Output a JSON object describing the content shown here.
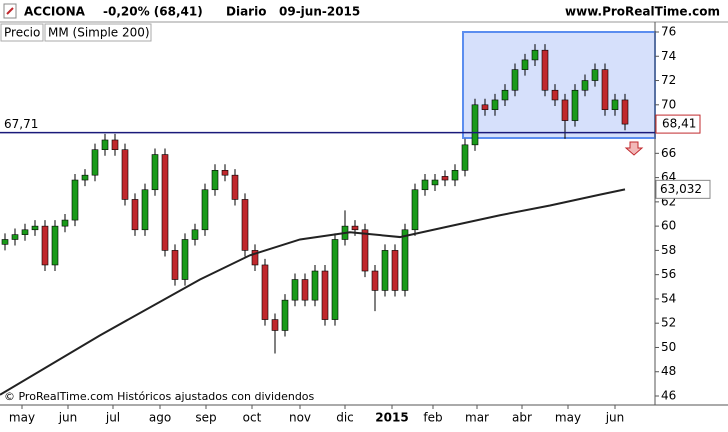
{
  "chart_data": {
    "type": "candlestick",
    "title": "ACCIONA",
    "change": "-0,20% (68,41)",
    "period": "Diario",
    "date": "09-jun-2015",
    "site": "www.ProRealTime.com",
    "legend": [
      "Precio",
      "MM (Simple 200)"
    ],
    "footer": "© ProRealTime.com Históricos ajustados con dividendos",
    "open": [
      58.5,
      58.9,
      59.3,
      59.7,
      60,
      56.8,
      60,
      60.5,
      63.8,
      64.2,
      66.3,
      67.1,
      66.3,
      62.2,
      59.7,
      63,
      65.9,
      58,
      55.6,
      58.9,
      59.7,
      63,
      64.6,
      64.2,
      62.2,
      58,
      56.8,
      52.3,
      51.4,
      53.9,
      55.6,
      53.9,
      56.3,
      52.3,
      58.9,
      60,
      59.7,
      56.3,
      54.7,
      58,
      54.7,
      59.7,
      63,
      63.4,
      64.1,
      63.8,
      64.6,
      66.7,
      70,
      69.6,
      70.4,
      71.2,
      72.9,
      73.7,
      74.5,
      71.2,
      70.4,
      68.7,
      71.2,
      72,
      72.9,
      69.6,
      70.4
    ],
    "high": [
      59.4,
      59.8,
      60.2,
      60.5,
      60.5,
      60.5,
      61,
      64.3,
      64.7,
      66.8,
      67.6,
      67.6,
      66.8,
      62.7,
      63.5,
      66.4,
      66.4,
      58.5,
      59.4,
      60.2,
      63.5,
      65.1,
      65.1,
      64.7,
      62.7,
      58.5,
      57.3,
      52.8,
      54.4,
      56.1,
      56.1,
      56.8,
      56.8,
      59.4,
      61.3,
      60.5,
      60.2,
      56.8,
      58.5,
      58.5,
      60.2,
      63.5,
      64.3,
      64.3,
      64.6,
      65.1,
      67.2,
      70.5,
      70.5,
      70.9,
      71.7,
      73.4,
      74.2,
      75,
      75,
      71.7,
      70.9,
      71.7,
      72.5,
      73.4,
      73.4,
      70.9,
      70.9
    ],
    "low": [
      58,
      58.4,
      58.8,
      59.2,
      56.3,
      56.3,
      59.5,
      60,
      63.3,
      63.7,
      65.8,
      65.8,
      61.7,
      59.2,
      59.2,
      62.5,
      57.5,
      55.1,
      55.1,
      58.4,
      59.2,
      62.5,
      63.7,
      61.7,
      57.5,
      56.3,
      51.8,
      49.5,
      50.9,
      53.4,
      53.4,
      53.4,
      51.8,
      51.8,
      58.4,
      59.2,
      55.8,
      53,
      54.2,
      54.2,
      54.2,
      59.2,
      62.5,
      62.9,
      63.3,
      63.3,
      64.1,
      66.2,
      69.1,
      69.1,
      69.9,
      70.7,
      72.4,
      73.2,
      70.7,
      69.9,
      67.2,
      68.2,
      70.7,
      71.5,
      69.1,
      69.1,
      67.9
    ],
    "close": [
      58.9,
      59.3,
      59.7,
      60,
      56.8,
      60,
      60.5,
      63.8,
      64.2,
      66.3,
      67.1,
      66.3,
      62.2,
      59.7,
      63,
      65.9,
      58,
      55.6,
      58.9,
      59.7,
      63,
      64.6,
      64.2,
      62.2,
      58,
      56.8,
      52.3,
      51.4,
      53.9,
      55.6,
      53.9,
      56.3,
      52.3,
      58.9,
      60,
      59.7,
      56.3,
      54.7,
      58,
      54.7,
      59.7,
      63,
      63.8,
      63.8,
      63.8,
      64.6,
      66.7,
      70,
      69.6,
      70.4,
      71.2,
      72.9,
      73.7,
      74.5,
      71.2,
      70.4,
      68.7,
      71.2,
      72,
      72.9,
      69.6,
      70.4,
      68.41
    ],
    "up_color": "#1a9a1a",
    "down_color": "#c0282d",
    "ma": {
      "x": [
        -0.5,
        9.5,
        19.5,
        24.5,
        29.5,
        34.5,
        39.5,
        44.5,
        49.5,
        54.5,
        59.5,
        62
      ],
      "values": [
        46.1,
        51,
        55.6,
        57.6,
        58.9,
        59.5,
        59.1,
        60,
        60.9,
        61.7,
        62.6,
        63.03
      ],
      "color": "#222222"
    },
    "support": {
      "value": 67.71,
      "label": "67,71"
    },
    "last_price": {
      "value": 68.41,
      "label": "68,41"
    },
    "ma_last": {
      "value": 63.032,
      "label": "63,032"
    },
    "xlim": [
      -0.5,
      65
    ],
    "ylim": [
      46,
      76
    ],
    "xticks": [
      {
        "value": 1.7,
        "label": "may"
      },
      {
        "value": 6.3,
        "label": "jun"
      },
      {
        "value": 10.8,
        "label": "jul"
      },
      {
        "value": 15.5,
        "label": "ago"
      },
      {
        "value": 20.1,
        "label": "sep"
      },
      {
        "value": 24.7,
        "label": "oct"
      },
      {
        "value": 29.5,
        "label": "nov"
      },
      {
        "value": 34,
        "label": "dic"
      },
      {
        "value": 38.7,
        "label": "2015"
      },
      {
        "value": 42.8,
        "label": "feb"
      },
      {
        "value": 47.2,
        "label": "mar"
      },
      {
        "value": 51.7,
        "label": "abr"
      },
      {
        "value": 56.3,
        "label": "may"
      },
      {
        "value": 61,
        "label": "jun"
      }
    ],
    "yticks": [
      46,
      48,
      50,
      52,
      54,
      56,
      58,
      60,
      62,
      64,
      66,
      68,
      70,
      72,
      74,
      76
    ]
  }
}
